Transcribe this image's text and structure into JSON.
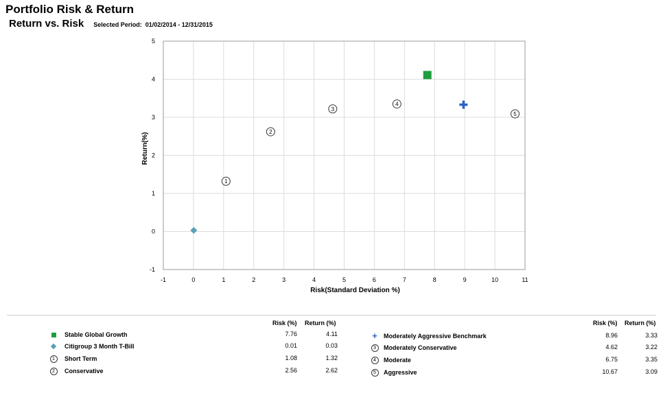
{
  "header": {
    "title": "Portfolio Risk & Return",
    "subtitle": "Return vs. Risk",
    "period_label": "Selected Period:",
    "period_value": "01/02/2014 -  12/31/2015"
  },
  "legend": {
    "risk_header": "Risk (%)",
    "return_header": "Return (%)"
  },
  "chart_data": {
    "type": "scatter",
    "xlabel": "Risk(Standard Deviation %)",
    "ylabel": "Return(%)",
    "xlim": [
      -1,
      11
    ],
    "ylim": [
      -1,
      5
    ],
    "xticks": [
      "-1",
      "0",
      "1",
      "2",
      "3",
      "4",
      "5",
      "6",
      "7",
      "8",
      "9",
      "10",
      "11"
    ],
    "yticks": [
      "-1",
      "0",
      "1",
      "2",
      "3",
      "4",
      "5"
    ],
    "grid": true,
    "legend_position": "bottom",
    "series": [
      {
        "name": "Stable Global Growth",
        "symbol": "square",
        "color": "#1e9e3d",
        "label": "",
        "x": 7.76,
        "y": 4.11,
        "risk": "7.76",
        "return": "4.11"
      },
      {
        "name": "Citigroup 3 Month T-Bill",
        "symbol": "diamond",
        "color": "#5aa0b4",
        "label": "",
        "x": 0.01,
        "y": 0.03,
        "risk": "0.01",
        "return": "0.03"
      },
      {
        "name": "Short Term",
        "symbol": "circle-number",
        "color": "#333333",
        "label": "1",
        "x": 1.08,
        "y": 1.32,
        "risk": "1.08",
        "return": "1.32"
      },
      {
        "name": "Conservative",
        "symbol": "circle-number",
        "color": "#333333",
        "label": "2",
        "x": 2.56,
        "y": 2.62,
        "risk": "2.56",
        "return": "2.62"
      },
      {
        "name": "Moderately Aggressive Benchmark",
        "symbol": "plus",
        "color": "#2a62c8",
        "label": "",
        "x": 8.96,
        "y": 3.33,
        "risk": "8.96",
        "return": "3.33"
      },
      {
        "name": "Moderately Conservative",
        "symbol": "circle-number",
        "color": "#333333",
        "label": "3",
        "x": 4.62,
        "y": 3.22,
        "risk": "4.62",
        "return": "3.22"
      },
      {
        "name": "Moderate",
        "symbol": "circle-number",
        "color": "#333333",
        "label": "4",
        "x": 6.75,
        "y": 3.35,
        "risk": "6.75",
        "return": "3.35"
      },
      {
        "name": "Aggressive",
        "symbol": "circle-number",
        "color": "#333333",
        "label": "5",
        "x": 10.67,
        "y": 3.09,
        "risk": "10.67",
        "return": "3.09"
      }
    ]
  }
}
